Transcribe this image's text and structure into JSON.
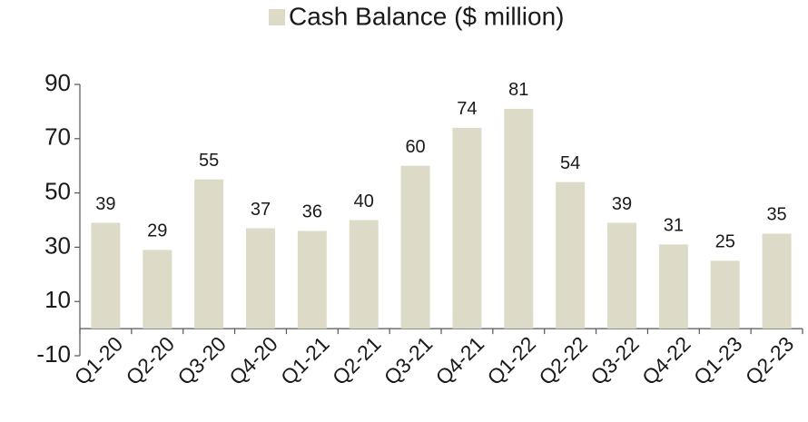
{
  "chart_data": {
    "type": "bar",
    "legend": "Cash Balance ($ million)",
    "categories": [
      "Q1-20",
      "Q2-20",
      "Q3-20",
      "Q4-20",
      "Q1-21",
      "Q2-21",
      "Q3-21",
      "Q4-21",
      "Q1-22",
      "Q2-22",
      "Q3-22",
      "Q4-22",
      "Q1-23",
      "Q2-23"
    ],
    "values": [
      39,
      29,
      55,
      37,
      36,
      40,
      60,
      74,
      81,
      54,
      39,
      31,
      25,
      35
    ],
    "color": "#dddbc7",
    "ylim": [
      -10,
      90
    ],
    "yticks": [
      -10,
      10,
      30,
      50,
      70,
      90
    ],
    "grid": false,
    "legend_position": "top"
  }
}
